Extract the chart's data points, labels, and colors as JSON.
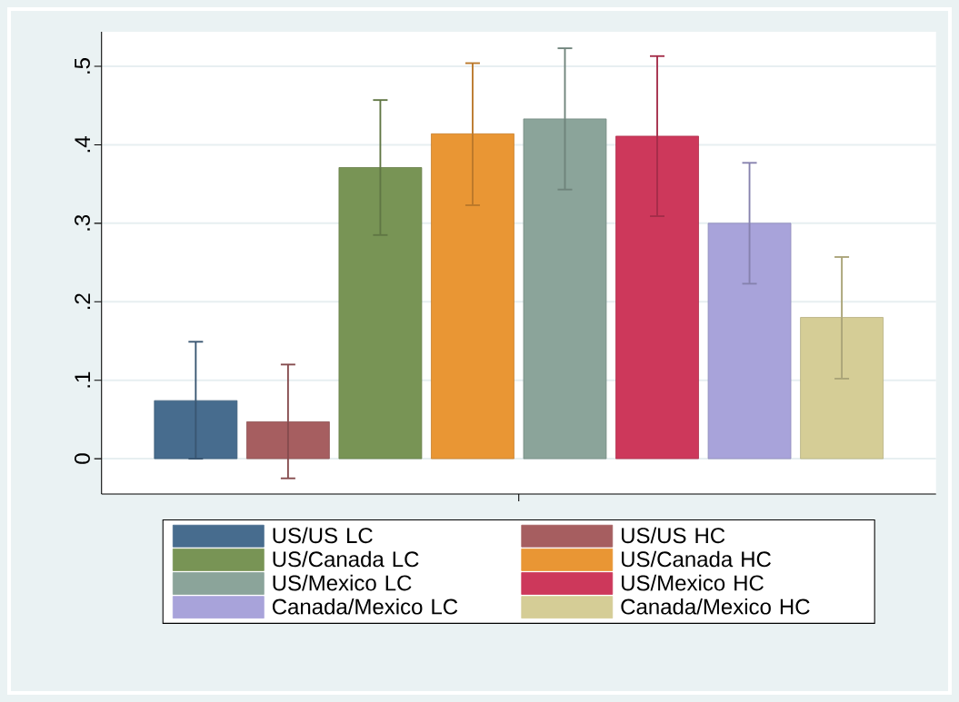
{
  "chart_data": {
    "type": "bar",
    "categories": [
      null
    ],
    "series": [
      {
        "name": "US/US LC",
        "color": "#476c8e",
        "values": [
          0.074
        ],
        "errors": [
          [
            0,
            0.149
          ]
        ]
      },
      {
        "name": "US/US HC",
        "color": "#a65e60",
        "values": [
          0.047
        ],
        "errors": [
          [
            -0.025,
            0.12
          ]
        ]
      },
      {
        "name": "US/Canada LC",
        "color": "#789455",
        "values": [
          0.371
        ],
        "errors": [
          [
            0.285,
            0.457
          ]
        ]
      },
      {
        "name": "US/Canada HC",
        "color": "#e99634",
        "values": [
          0.414
        ],
        "errors": [
          [
            0.323,
            0.504
          ]
        ]
      },
      {
        "name": "US/Mexico LC",
        "color": "#8ba49a",
        "values": [
          0.433
        ],
        "errors": [
          [
            0.343,
            0.523
          ]
        ]
      },
      {
        "name": "US/Mexico HC",
        "color": "#cd385b",
        "values": [
          0.411
        ],
        "errors": [
          [
            0.309,
            0.513
          ]
        ]
      },
      {
        "name": "Canada/Mexico LC",
        "color": "#a8a3da",
        "values": [
          0.3
        ],
        "errors": [
          [
            0.223,
            0.377
          ]
        ]
      },
      {
        "name": "Canada/Mexico HC",
        "color": "#d5cd96",
        "values": [
          0.18
        ],
        "errors": [
          [
            0.102,
            0.257
          ]
        ]
      }
    ],
    "ylim": [
      -0.045,
      0.544
    ],
    "yticks": [
      0,
      {
        "value": 0.1,
        "label": ".1"
      },
      {
        "value": 0.2,
        "label": ".2"
      },
      {
        "value": 0.3,
        "label": ".3"
      },
      {
        "value": 0.4,
        "label": ".4"
      },
      {
        "value": 0.5,
        "label": ".5"
      }
    ],
    "grid": "y",
    "legend": "bottom"
  }
}
